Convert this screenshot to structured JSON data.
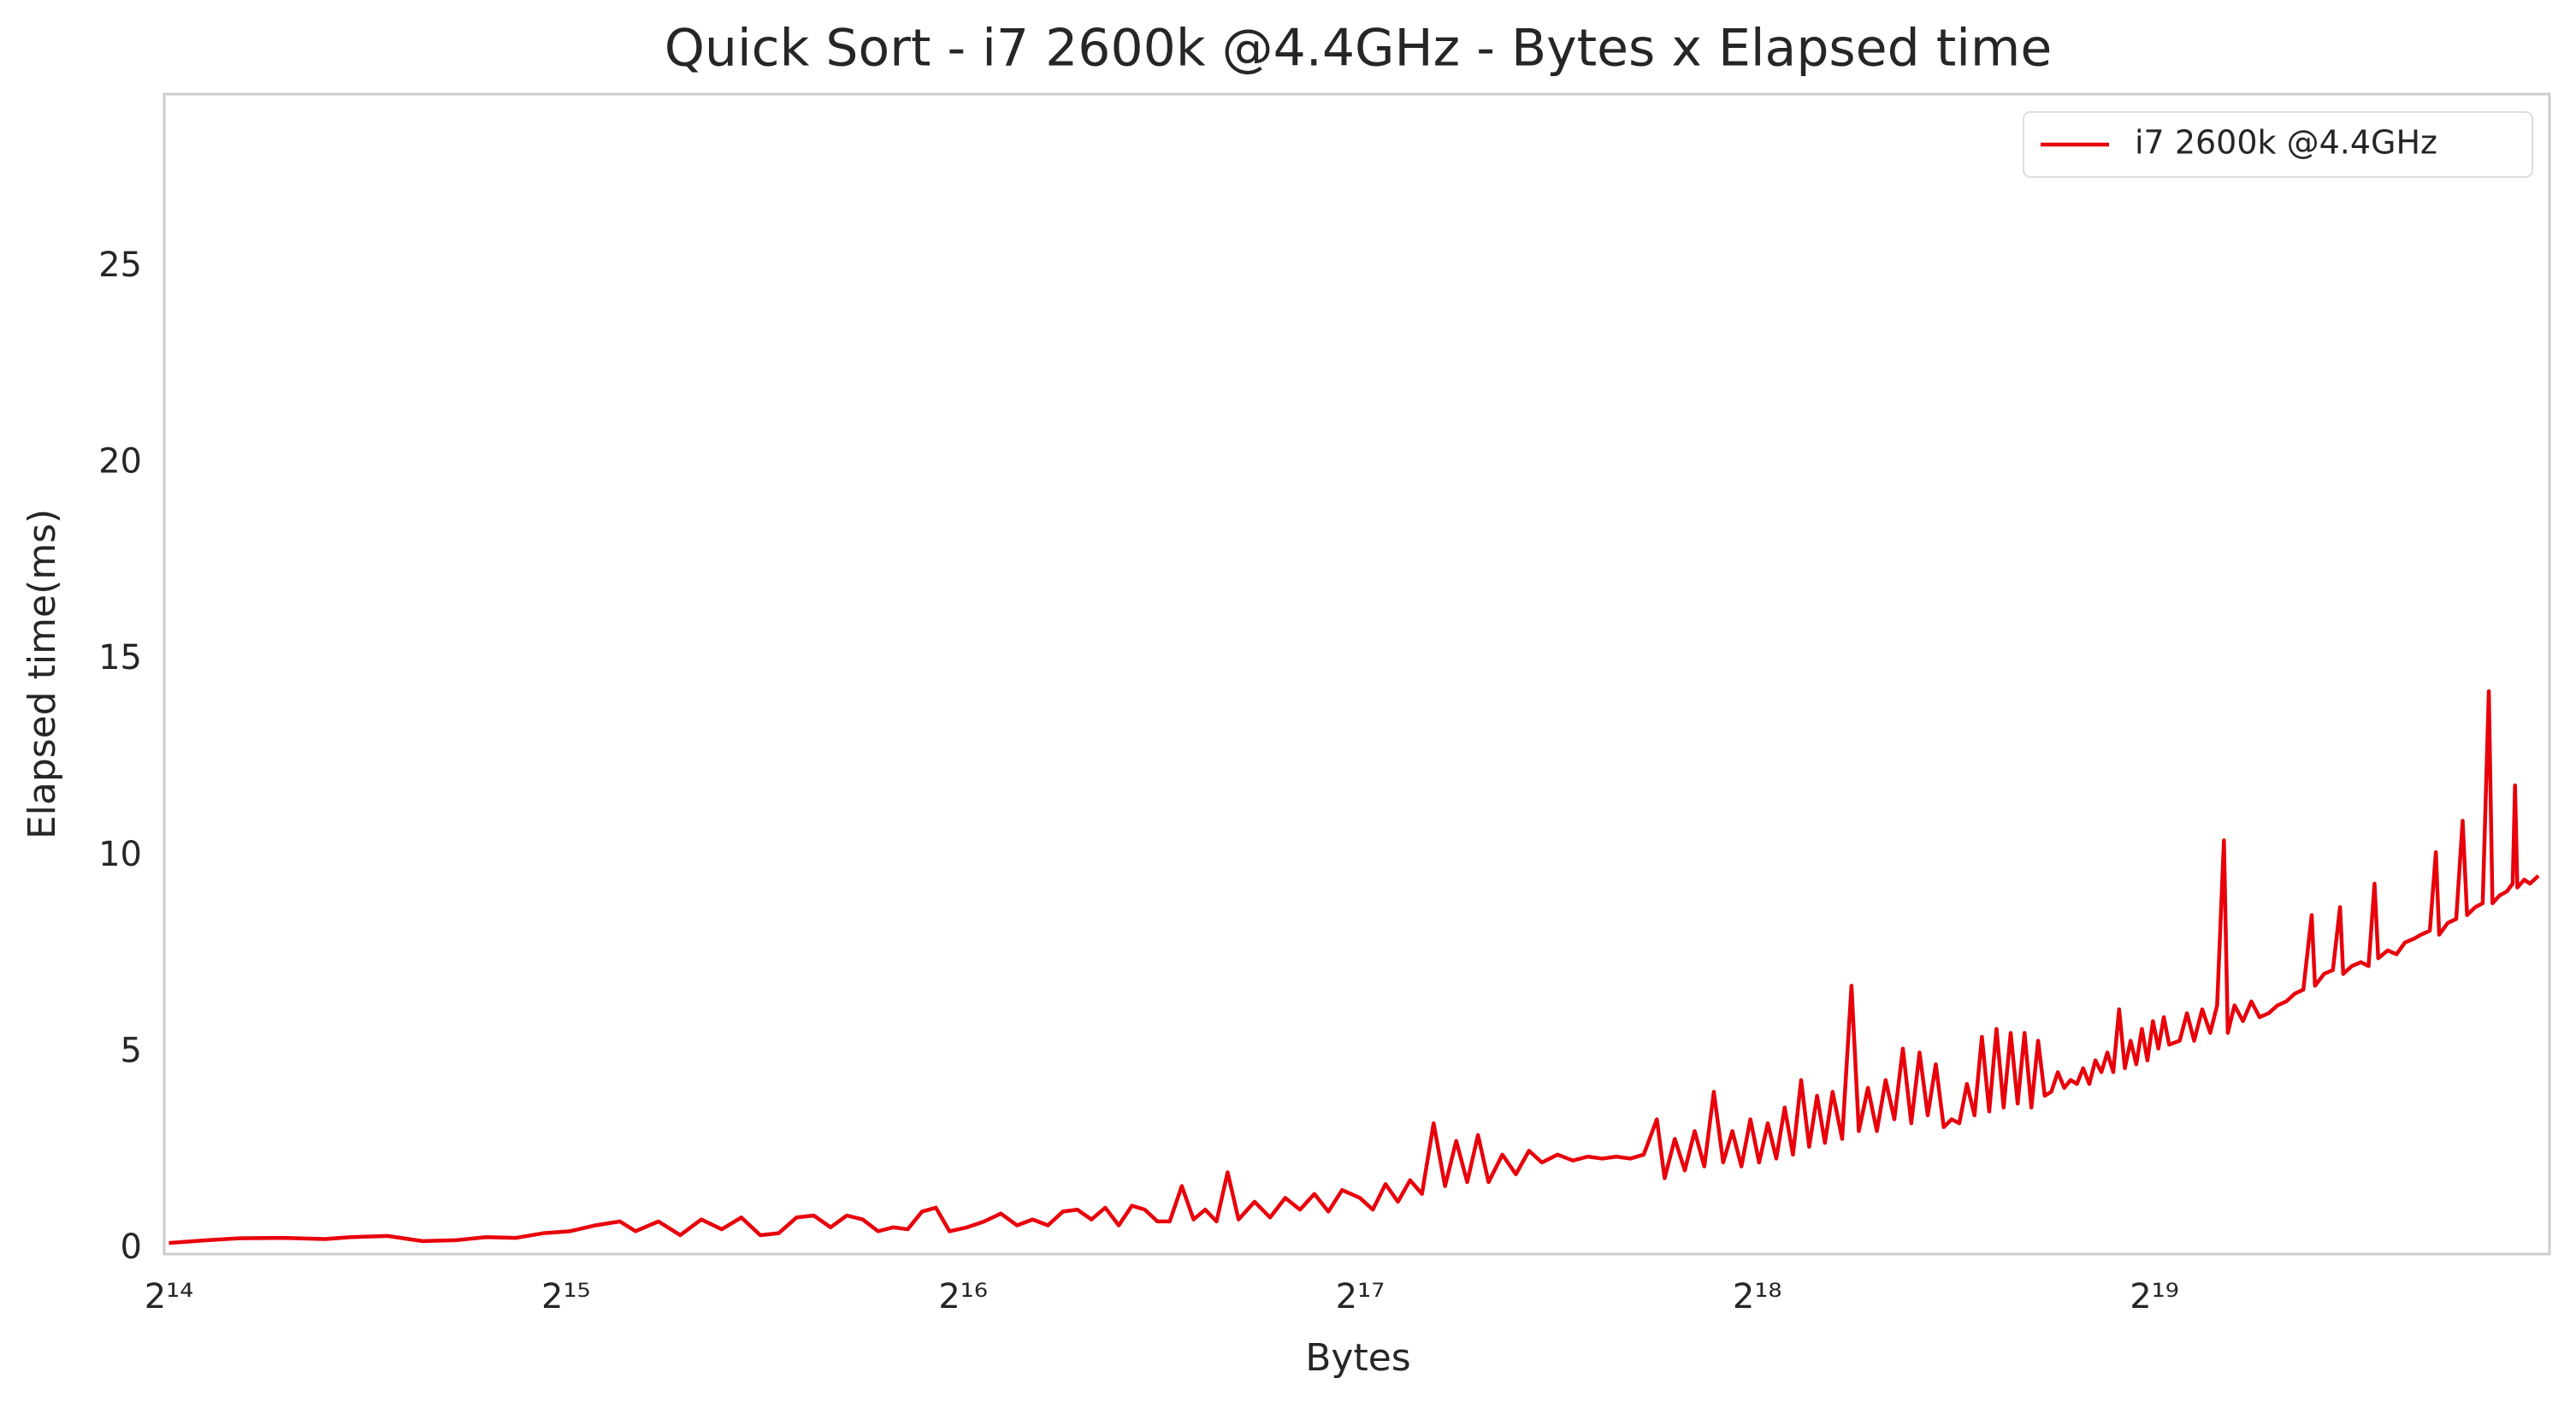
{
  "chart_data": {
    "type": "line",
    "title": "Quick Sort - i7 2600k @4.4GHz - Bytes x Elapsed time",
    "x_label": "Bytes",
    "y_label": "Elapsed time(ms)",
    "xscale": "log2",
    "grid": false,
    "legend": "upper right",
    "xlim": [
      16250,
      1045000
    ],
    "xticks": [
      {
        "value": 16384,
        "label": "2¹⁴"
      },
      {
        "value": 32768,
        "label": "2¹⁵"
      },
      {
        "value": 65536,
        "label": "2¹⁶"
      },
      {
        "value": 131072,
        "label": "2¹⁷"
      },
      {
        "value": 262144,
        "label": "2¹⁸"
      },
      {
        "value": 524288,
        "label": "2¹⁹"
      }
    ],
    "ylim": [
      -0.13,
      29.4
    ],
    "yticks": [
      0,
      5,
      10,
      15,
      20,
      25
    ],
    "x": [
      16384,
      17500,
      18500,
      20000,
      21500,
      22500,
      24000,
      25500,
      27000,
      28500,
      30000,
      31500,
      33000,
      34500,
      36000,
      37000,
      38500,
      40000,
      41500,
      43000,
      44500,
      46000,
      47500,
      49000,
      50500,
      52000,
      53500,
      55000,
      56500,
      58000,
      59500,
      61000,
      62500,
      64000,
      66000,
      68000,
      70000,
      72000,
      74000,
      76000,
      78000,
      80000,
      82000,
      84000,
      86000,
      88000,
      90000,
      92000,
      94000,
      96000,
      98000,
      100000,
      102000,
      104000,
      106000,
      109000,
      112000,
      115000,
      118000,
      121000,
      124000,
      127000,
      131000,
      134000,
      137000,
      140000,
      143000,
      146000,
      149000,
      152000,
      155000,
      158000,
      161000,
      164000,
      168000,
      172000,
      176000,
      180000,
      185000,
      190000,
      195000,
      200000,
      205000,
      210000,
      215000,
      220000,
      223000,
      227000,
      231000,
      235000,
      239000,
      243000,
      247000,
      251000,
      255000,
      259000,
      263000,
      267000,
      271000,
      275000,
      279000,
      283000,
      287000,
      291000,
      295000,
      299000,
      304000,
      309000,
      313000,
      318000,
      323000,
      328000,
      333000,
      338000,
      343000,
      348000,
      353000,
      358000,
      363000,
      368000,
      373000,
      378000,
      383000,
      388000,
      393000,
      398000,
      403000,
      408000,
      413000,
      418000,
      423000,
      428000,
      433000,
      438000,
      443000,
      448000,
      453000,
      458000,
      463000,
      468000,
      473000,
      478000,
      483000,
      488000,
      493000,
      498000,
      503000,
      508000,
      513000,
      518000,
      523000,
      528000,
      533000,
      538000,
      548000,
      555000,
      562000,
      570000,
      578000,
      585000,
      592000,
      596000,
      603000,
      612000,
      621000,
      630000,
      640000,
      650000,
      660000,
      670000,
      680000,
      690000,
      694000,
      705000,
      716000,
      725000,
      729000,
      740000,
      752000,
      762000,
      770000,
      775000,
      788000,
      800000,
      812000,
      825000,
      835000,
      848000,
      857000,
      862000,
      875000,
      888000,
      898000,
      905000,
      918000,
      930000,
      940000,
      946000,
      958000,
      970000,
      980000,
      984000,
      988000,
      1000000,
      1010000,
      1025000
    ],
    "series": [
      {
        "name": "i7 2600k @4.4GHz",
        "color": "#e8000b",
        "values": [
          0.15,
          0.22,
          0.27,
          0.28,
          0.25,
          0.3,
          0.33,
          0.2,
          0.22,
          0.3,
          0.28,
          0.4,
          0.45,
          0.6,
          0.7,
          0.45,
          0.7,
          0.35,
          0.75,
          0.5,
          0.8,
          0.35,
          0.4,
          0.8,
          0.85,
          0.55,
          0.85,
          0.75,
          0.45,
          0.55,
          0.5,
          0.95,
          1.05,
          0.45,
          0.55,
          0.7,
          0.9,
          0.6,
          0.75,
          0.6,
          0.95,
          1.0,
          0.75,
          1.05,
          0.6,
          1.1,
          1.0,
          0.7,
          0.7,
          1.6,
          0.75,
          1.0,
          0.7,
          1.95,
          0.75,
          1.2,
          0.8,
          1.3,
          1.0,
          1.4,
          0.95,
          1.5,
          1.3,
          1.0,
          1.65,
          1.2,
          1.75,
          1.4,
          3.2,
          1.6,
          2.75,
          1.7,
          2.9,
          1.7,
          2.4,
          1.9,
          2.5,
          2.2,
          2.4,
          2.25,
          2.35,
          2.3,
          2.35,
          2.3,
          2.4,
          3.3,
          1.8,
          2.8,
          2.0,
          3.0,
          2.1,
          4.0,
          2.2,
          3.0,
          2.1,
          3.3,
          2.2,
          3.2,
          2.3,
          3.6,
          2.4,
          4.3,
          2.6,
          3.9,
          2.7,
          4.0,
          2.8,
          6.7,
          3.0,
          4.1,
          3.0,
          4.3,
          3.3,
          5.1,
          3.2,
          5.0,
          3.4,
          4.7,
          3.1,
          3.3,
          3.2,
          4.2,
          3.4,
          5.4,
          3.5,
          5.6,
          3.6,
          5.5,
          3.7,
          5.5,
          3.6,
          5.3,
          3.9,
          4.0,
          4.5,
          4.1,
          4.3,
          4.2,
          4.6,
          4.2,
          4.8,
          4.5,
          5.0,
          4.5,
          6.1,
          4.6,
          5.3,
          4.7,
          5.6,
          4.8,
          5.8,
          5.1,
          5.9,
          5.2,
          5.3,
          6.0,
          5.3,
          6.1,
          5.5,
          6.2,
          10.4,
          5.5,
          6.2,
          5.8,
          6.3,
          5.9,
          6.0,
          6.2,
          6.3,
          6.5,
          6.6,
          8.5,
          6.7,
          7.0,
          7.1,
          8.7,
          7.0,
          7.2,
          7.3,
          7.2,
          9.3,
          7.4,
          7.6,
          7.5,
          7.8,
          7.9,
          8.0,
          8.1,
          10.1,
          8.0,
          8.3,
          8.4,
          10.9,
          8.5,
          8.7,
          8.8,
          14.2,
          8.8,
          9.0,
          9.1,
          9.3,
          11.8,
          9.2,
          9.4,
          9.3,
          9.5
        ]
      }
    ]
  }
}
